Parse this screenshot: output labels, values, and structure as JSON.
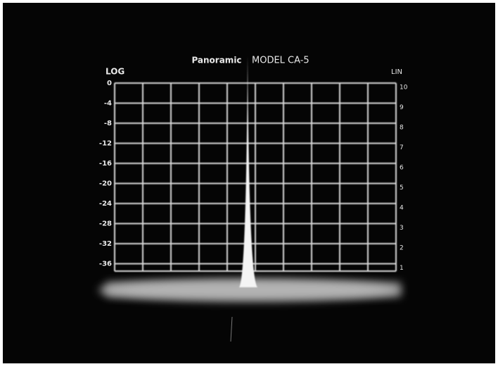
{
  "header": {
    "brand": "Panoramic",
    "model": "MODEL CA-5"
  },
  "scales": {
    "log_label": "LOG",
    "lin_label": "LIN",
    "log_ticks": [
      0,
      -4,
      -8,
      -12,
      -16,
      -20,
      -24,
      -28,
      -32,
      -36
    ],
    "lin_ticks": [
      10,
      9,
      8,
      7,
      6,
      5,
      4,
      3,
      2,
      1
    ]
  }
}
